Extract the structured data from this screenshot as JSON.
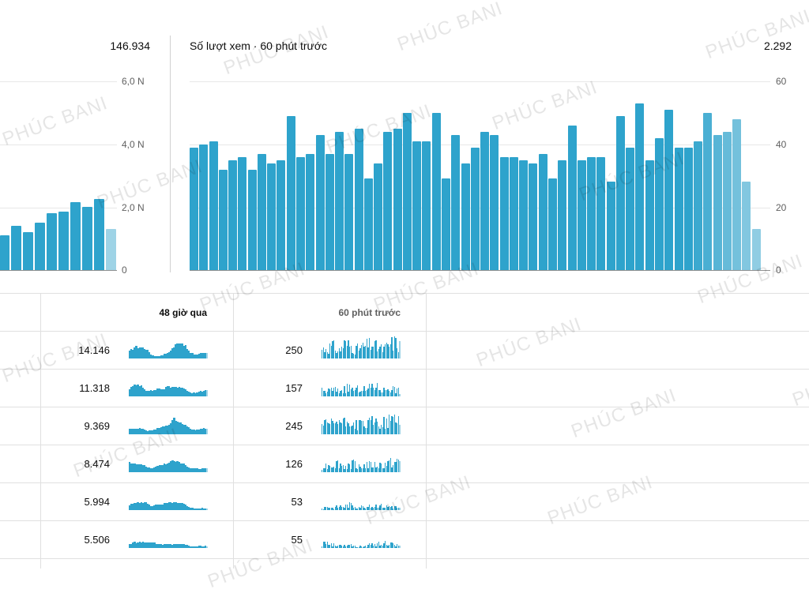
{
  "left_card": {
    "total": "146.934",
    "y_ticks": [
      "6,0 N",
      "4,0 N",
      "2,0 N",
      "0"
    ]
  },
  "right_card": {
    "title": "Số lượt xem · 60 phút trước",
    "total": "2.292",
    "y_ticks": [
      "60",
      "40",
      "20",
      "0"
    ]
  },
  "chart_data": [
    {
      "type": "bar",
      "title": "",
      "ylim": [
        0,
        6000
      ],
      "y_ticks": [
        "6,0 N",
        "4,0 N",
        "2,0 N",
        "0"
      ],
      "values": [
        1100,
        1400,
        1200,
        1500,
        1800,
        1850,
        2150,
        2000,
        2250,
        1300
      ],
      "note_last_partial": true
    },
    {
      "type": "bar",
      "title": "Số lượt xem · 60 phút trước",
      "ylim": [
        0,
        60
      ],
      "y_ticks": [
        "60",
        "40",
        "20",
        "0"
      ],
      "values": [
        39,
        40,
        41,
        32,
        35,
        36,
        32,
        37,
        34,
        35,
        49,
        36,
        37,
        43,
        37,
        44,
        37,
        45,
        29,
        34,
        44,
        45,
        50,
        41,
        41,
        50,
        29,
        43,
        34,
        39,
        44,
        43,
        36,
        36,
        35,
        34,
        37,
        29,
        35,
        46,
        35,
        36,
        36,
        28,
        49,
        39,
        53,
        35,
        42,
        51,
        39,
        39,
        41,
        50,
        43,
        44,
        48,
        28,
        13
      ]
    }
  ],
  "table": {
    "headers": {
      "hours48": "48 giờ qua",
      "min60": "60 phút trước"
    },
    "rows": [
      {
        "h48": "14.146",
        "m60": "250",
        "spark48": [
          4,
          6,
          6,
          5,
          2,
          1,
          2,
          3,
          6,
          9,
          7,
          3,
          2,
          3,
          3
        ],
        "spark60": [
          5,
          6,
          7,
          4,
          8,
          7,
          5,
          6,
          7,
          8,
          6,
          5,
          7,
          9,
          7
        ]
      },
      {
        "h48": "11.318",
        "m60": "157",
        "spark48": [
          4,
          6,
          6,
          3,
          3,
          4,
          4,
          5,
          5,
          5,
          4,
          2,
          2,
          3,
          3
        ],
        "spark60": [
          3,
          3,
          4,
          3,
          4,
          5,
          3,
          5,
          3,
          6,
          5,
          3,
          5,
          4,
          3
        ]
      },
      {
        "h48": "9.369",
        "m60": "245",
        "spark48": [
          3,
          3,
          3,
          2,
          2,
          3,
          4,
          5,
          8,
          6,
          5,
          3,
          2,
          3,
          3
        ],
        "spark60": [
          6,
          5,
          6,
          7,
          6,
          7,
          5,
          6,
          5,
          7,
          6,
          6,
          7,
          9,
          7
        ]
      },
      {
        "h48": "8.474",
        "m60": "126",
        "spark48": [
          5,
          4,
          4,
          3,
          2,
          3,
          4,
          5,
          6,
          5,
          4,
          2,
          2,
          2,
          2
        ],
        "spark60": [
          3,
          4,
          4,
          5,
          3,
          4,
          5,
          3,
          4,
          4,
          4,
          4,
          5,
          5,
          6
        ]
      },
      {
        "h48": "5.994",
        "m60": "53",
        "spark48": [
          3,
          4,
          4,
          4,
          2,
          3,
          3,
          4,
          4,
          4,
          3,
          1,
          1,
          1,
          1
        ],
        "spark60": [
          1,
          2,
          1,
          2,
          2,
          3,
          2,
          2,
          2,
          2,
          3,
          2,
          2,
          2,
          1
        ]
      },
      {
        "h48": "5.506",
        "m60": "55",
        "spark48": [
          2,
          3,
          3,
          3,
          3,
          2,
          2,
          2,
          2,
          2,
          2,
          1,
          1,
          1,
          1
        ],
        "spark60": [
          2,
          3,
          2,
          1,
          2,
          2,
          1,
          1,
          1,
          2,
          2,
          3,
          2,
          2,
          1
        ]
      }
    ]
  },
  "colors": {
    "bar": "#2ea3cc",
    "bar_light": "#9ed3e6",
    "accent_text": "#0d0d0d"
  },
  "watermark": "PHÚC BANI"
}
